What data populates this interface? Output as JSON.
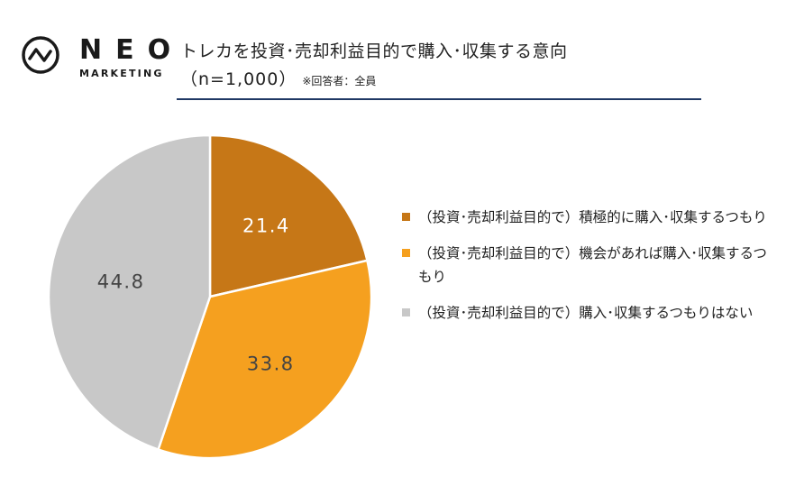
{
  "logo": {
    "word": "NEO",
    "sub": "MARKETING"
  },
  "header": {
    "title": "トレカを投資･売却利益目的で購入･収集する意向",
    "sample": "（n=1,000）",
    "note": "※回答者：全員"
  },
  "colors": {
    "accent_rule": "#1f3864",
    "slice_1": "#c67717",
    "slice_2": "#f5a01f",
    "slice_3": "#c8c8c8"
  },
  "chart_data": {
    "type": "pie",
    "title": "トレカを投資･売却利益目的で購入･収集する意向",
    "categories": [
      "（投資･売却利益目的で）積極的に購入･収集するつもり",
      "（投資･売却利益目的で）機会があれば購入･収集するつもり",
      "（投資･売却利益目的で）購入･収集するつもりはない"
    ],
    "values": [
      21.4,
      33.8,
      44.8
    ],
    "colors": [
      "#c67717",
      "#f5a01f",
      "#c8c8c8"
    ],
    "data_label_colors": [
      "#ffffff",
      "#444444",
      "#444444"
    ],
    "start_angle_deg": 0,
    "direction": "clockwise",
    "legend_position": "right"
  }
}
